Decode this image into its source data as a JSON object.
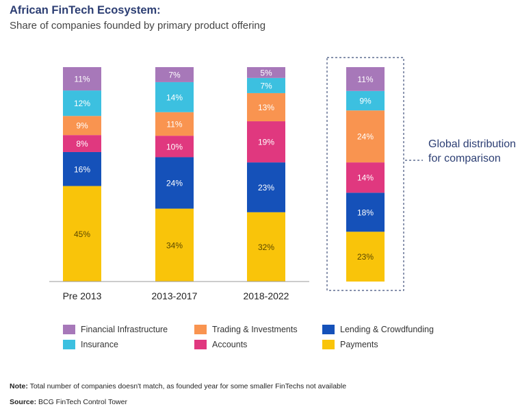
{
  "header": {
    "title": "African FinTech Ecosystem:",
    "subtitle": "Share of companies founded by primary product offering"
  },
  "colors": {
    "Financial Infrastructure": "#a778b9",
    "Insurance": "#3cc0e0",
    "Trading & Investments": "#f99450",
    "Accounts": "#e0387f",
    "Lending & Crowdfunding": "#1551b9",
    "Payments": "#f9c40a"
  },
  "chart_data": {
    "type": "bar",
    "stacked": true,
    "categories": [
      "Pre 2013",
      "2013-2017",
      "2018-2022",
      ""
    ],
    "series": [
      {
        "name": "Payments",
        "values": [
          45,
          34,
          32,
          23
        ]
      },
      {
        "name": "Lending & Crowdfunding",
        "values": [
          16,
          24,
          23,
          18
        ]
      },
      {
        "name": "Accounts",
        "values": [
          8,
          10,
          19,
          14
        ]
      },
      {
        "name": "Trading & Investments",
        "values": [
          9,
          11,
          13,
          24
        ]
      },
      {
        "name": "Insurance",
        "values": [
          12,
          14,
          7,
          9
        ]
      },
      {
        "name": "Financial Infrastructure",
        "values": [
          11,
          7,
          5,
          11
        ]
      }
    ],
    "value_suffix": "%",
    "legend_order": [
      "Financial Infrastructure",
      "Trading & Investments",
      "Lending & Crowdfunding",
      "Insurance",
      "Accounts",
      "Payments"
    ],
    "legend_placement": "bottom",
    "grid": false
  },
  "annotation": {
    "global_label": "Global distribution for comparison"
  },
  "footer": {
    "note_label": "Note:",
    "note_text": "Total number of companies doesn't match, as founded year for some smaller FinTechs not available",
    "source_label": "Source:",
    "source_text": "BCG FinTech Control Tower"
  }
}
